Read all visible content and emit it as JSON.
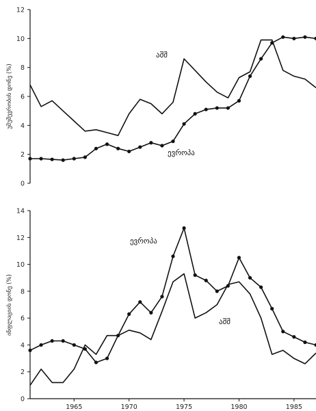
{
  "chart_data": [
    {
      "type": "line",
      "title": "",
      "xlabel": "",
      "ylabel": "უმუშევრობის დონე (%)",
      "xlim": [
        1961,
        1987
      ],
      "ylim": [
        0,
        12
      ],
      "yticks": [
        0,
        2,
        4,
        6,
        8,
        10,
        12
      ],
      "xticks": [],
      "grid": false,
      "series": [
        {
          "name": "აშშ",
          "marker": "none",
          "x": [
            1961,
            1962,
            1963,
            1964,
            1965,
            1966,
            1967,
            1968,
            1969,
            1970,
            1971,
            1972,
            1973,
            1974,
            1975,
            1976,
            1977,
            1978,
            1979,
            1980,
            1981,
            1982,
            1983,
            1984,
            1985,
            1986,
            1987
          ],
          "values": [
            6.8,
            5.3,
            5.7,
            5.0,
            4.3,
            3.6,
            3.7,
            3.5,
            3.3,
            4.8,
            5.8,
            5.5,
            4.8,
            5.6,
            8.6,
            7.8,
            7.0,
            6.3,
            5.9,
            7.3,
            7.7,
            9.9,
            9.9,
            7.8,
            7.4,
            7.2,
            6.6
          ]
        },
        {
          "name": "ევროპა",
          "marker": "circle",
          "x": [
            1961,
            1962,
            1963,
            1964,
            1965,
            1966,
            1967,
            1968,
            1969,
            1970,
            1971,
            1972,
            1973,
            1974,
            1975,
            1976,
            1977,
            1978,
            1979,
            1980,
            1981,
            1982,
            1983,
            1984,
            1985,
            1986,
            1987
          ],
          "values": [
            1.7,
            1.7,
            1.65,
            1.6,
            1.7,
            1.8,
            2.4,
            2.7,
            2.4,
            2.2,
            2.5,
            2.8,
            2.6,
            2.9,
            4.1,
            4.8,
            5.1,
            5.2,
            5.2,
            5.7,
            7.4,
            8.6,
            9.7,
            10.1,
            10.0,
            10.1,
            10.0
          ]
        }
      ],
      "annotations": [
        {
          "text": "აშშ",
          "series": "აშშ"
        },
        {
          "text": "ევროპა",
          "series": "ევროპა"
        }
      ]
    },
    {
      "type": "line",
      "title": "",
      "xlabel": "",
      "ylabel": "ინფლაციის დონე (%)",
      "xlim": [
        1961,
        1987
      ],
      "ylim": [
        0,
        14
      ],
      "yticks": [
        0,
        2,
        4,
        6,
        8,
        10,
        12,
        14
      ],
      "xticks": [
        "1965",
        "1970",
        "1975",
        "1980",
        "1985"
      ],
      "grid": false,
      "series": [
        {
          "name": "აშშ",
          "marker": "none",
          "x": [
            1961,
            1962,
            1963,
            1964,
            1965,
            1966,
            1967,
            1968,
            1969,
            1970,
            1971,
            1972,
            1973,
            1974,
            1975,
            1976,
            1977,
            1978,
            1979,
            1980,
            1981,
            1982,
            1983,
            1984,
            1985,
            1986,
            1987
          ],
          "values": [
            1.0,
            2.2,
            1.2,
            1.2,
            2.2,
            4.0,
            3.3,
            4.7,
            4.7,
            5.1,
            4.9,
            4.4,
            6.5,
            8.7,
            9.3,
            6.0,
            6.4,
            7.0,
            8.5,
            8.7,
            7.8,
            6.0,
            3.3,
            3.6,
            3.0,
            2.6,
            3.4
          ]
        },
        {
          "name": "ევროპა",
          "marker": "circle",
          "x": [
            1961,
            1962,
            1963,
            1964,
            1965,
            1966,
            1967,
            1968,
            1969,
            1970,
            1971,
            1972,
            1973,
            1974,
            1975,
            1976,
            1977,
            1978,
            1979,
            1980,
            1981,
            1982,
            1983,
            1984,
            1985,
            1986,
            1987
          ],
          "values": [
            3.6,
            4.0,
            4.3,
            4.3,
            4.0,
            3.7,
            2.7,
            3.0,
            4.7,
            6.3,
            7.2,
            6.4,
            7.6,
            10.6,
            12.7,
            9.2,
            8.8,
            8.0,
            8.4,
            10.5,
            9.0,
            8.3,
            6.7,
            5.0,
            4.6,
            4.2,
            4.0
          ]
        }
      ],
      "annotations": [
        {
          "text": "ევროპა",
          "series": "ევროპა"
        },
        {
          "text": "აშშ",
          "series": "აშშ"
        }
      ]
    }
  ]
}
